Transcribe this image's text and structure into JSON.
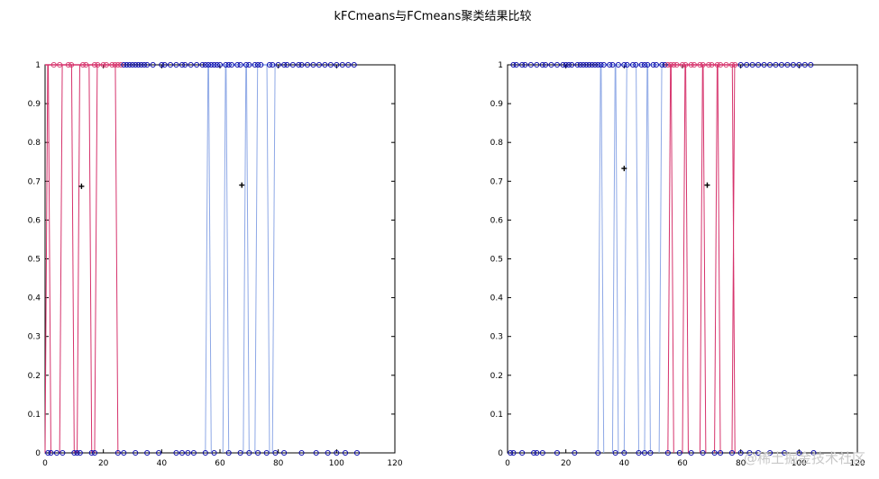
{
  "title": "kFCmeans与FCmeans聚类结果比较",
  "watermark": "@稀土掘金技术社区",
  "colors": {
    "cluster_red": "#d6336c",
    "cluster_blue": "#8ea8e6",
    "marker": "#0000aa",
    "center": "#000000"
  },
  "chart_data": [
    {
      "type": "line",
      "xlim": [
        0,
        120
      ],
      "ylim": [
        0,
        1
      ],
      "xticks": [
        "0",
        "20",
        "40",
        "60",
        "80",
        "100",
        "120"
      ],
      "yticks": [
        "0",
        "0.1",
        "0.2",
        "0.3",
        "0.4",
        "0.5",
        "0.6",
        "0.7",
        "0.8",
        "0.9",
        "1"
      ],
      "grid": false,
      "red_transitions": [
        0,
        2,
        5,
        10,
        11,
        16,
        17,
        25
      ],
      "blue_transitions": [
        55,
        57,
        61,
        63,
        68,
        70,
        72,
        77,
        78
      ],
      "markers_top": [
        3,
        5,
        8,
        9,
        13,
        14,
        17,
        18,
        20,
        21,
        23,
        24,
        25,
        26,
        27,
        28,
        29,
        30,
        31,
        32,
        33,
        34,
        35,
        37,
        40,
        41,
        43,
        45,
        47,
        48,
        50,
        52,
        54,
        55,
        56,
        57,
        58,
        59,
        60,
        62,
        63,
        64,
        66,
        67,
        69,
        70,
        72,
        73,
        74,
        77,
        78,
        80,
        82,
        83,
        85,
        87,
        88,
        90,
        92,
        94,
        96,
        98,
        100,
        102,
        104,
        106
      ],
      "markers_bottom": [
        1,
        2,
        4,
        6,
        10,
        11,
        12,
        16,
        17,
        25,
        27,
        31,
        35,
        39,
        45,
        47,
        49,
        51,
        55,
        58,
        63,
        67,
        70,
        73,
        76,
        79,
        82,
        88,
        93,
        97,
        100,
        103,
        107
      ],
      "centers": [
        {
          "x": 12.5,
          "y": 0.687
        },
        {
          "x": 67.5,
          "y": 0.69
        }
      ]
    },
    {
      "type": "line",
      "xlim": [
        0,
        120
      ],
      "ylim": [
        0,
        1
      ],
      "xticks": [
        "0",
        "20",
        "40",
        "60",
        "80",
        "100",
        "120"
      ],
      "yticks": [
        "0",
        "0.1",
        "0.2",
        "0.3",
        "0.4",
        "0.5",
        "0.6",
        "0.7",
        "0.8",
        "0.9",
        "1"
      ],
      "grid": false,
      "blue_transitions": [
        31,
        33,
        36,
        38,
        40,
        45,
        47,
        49,
        52
      ],
      "red_transitions": [
        55,
        57,
        60,
        62,
        66,
        68,
        71,
        73,
        77,
        78
      ],
      "markers_top": [
        2,
        3,
        5,
        6,
        8,
        10,
        12,
        13,
        15,
        17,
        19,
        20,
        21,
        22,
        24,
        25,
        26,
        27,
        28,
        29,
        30,
        31,
        32,
        33,
        35,
        36,
        38,
        40,
        41,
        43,
        44,
        46,
        47,
        48,
        50,
        51,
        53,
        54,
        55,
        56,
        57,
        58,
        60,
        61,
        63,
        64,
        66,
        67,
        69,
        70,
        72,
        73,
        75,
        77,
        78,
        80,
        82,
        84,
        86,
        88,
        90,
        92,
        94,
        96,
        98,
        100,
        102,
        104
      ],
      "markers_bottom": [
        1,
        2,
        5,
        9,
        10,
        12,
        17,
        23,
        31,
        37,
        40,
        45,
        47,
        49,
        55,
        59,
        63,
        67,
        71,
        73,
        77,
        80,
        83,
        86,
        90,
        95,
        100,
        105
      ],
      "centers": [
        {
          "x": 40,
          "y": 0.733
        },
        {
          "x": 68.5,
          "y": 0.69
        }
      ]
    }
  ]
}
